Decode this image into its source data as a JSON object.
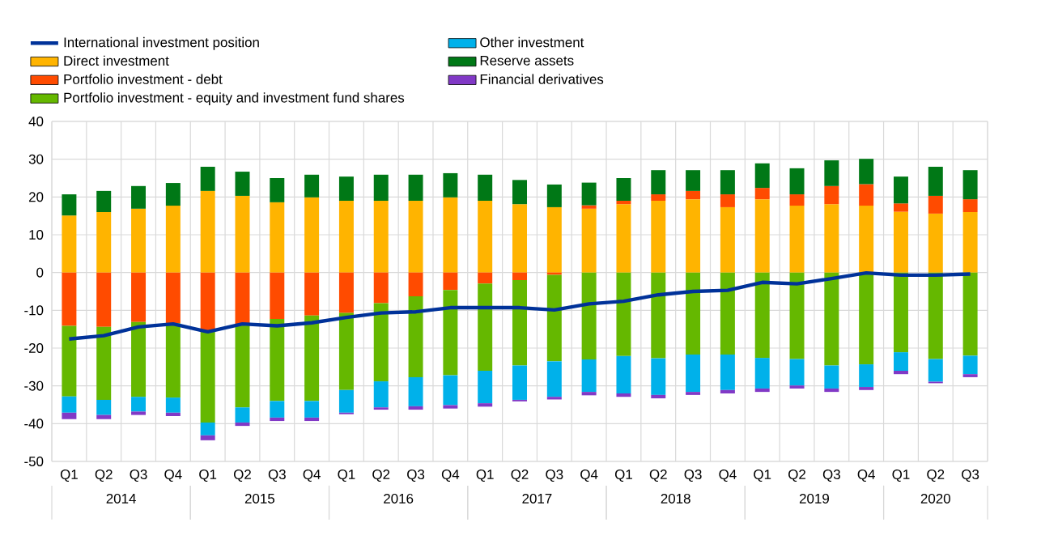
{
  "chart_data": {
    "type": "bar",
    "stacked": true,
    "categories": [
      "Q1",
      "Q2",
      "Q3",
      "Q4",
      "Q1",
      "Q2",
      "Q3",
      "Q4",
      "Q1",
      "Q2",
      "Q3",
      "Q4",
      "Q1",
      "Q2",
      "Q3",
      "Q4",
      "Q1",
      "Q2",
      "Q3",
      "Q4",
      "Q1",
      "Q2",
      "Q3",
      "Q4",
      "Q1",
      "Q2",
      "Q3"
    ],
    "annotations": [
      "2014",
      "2015",
      "2016",
      "2017",
      "2018",
      "2019",
      "2020"
    ],
    "ylim": [
      -50,
      40
    ],
    "yticks": [
      -50,
      -40,
      -30,
      -20,
      -10,
      0,
      10,
      20,
      30,
      40
    ],
    "grid": true,
    "legend": "top",
    "series": [
      {
        "name": "International investment position",
        "type": "line",
        "color": "#003299",
        "values": [
          -17.6,
          -16.7,
          -14.4,
          -13.6,
          -15.7,
          -13.6,
          -14.1,
          -13.3,
          -11.9,
          -10.7,
          -10.4,
          -9.3,
          -9.3,
          -9.3,
          -9.9,
          -8.3,
          -7.6,
          -5.9,
          -5.0,
          -4.7,
          -2.6,
          -3.0,
          -1.6,
          -0.1,
          -0.7,
          -0.7,
          -0.4
        ]
      },
      {
        "name": "Direct investment",
        "color": "#ffb400",
        "values": [
          15.1,
          16.0,
          16.9,
          17.7,
          21.6,
          20.3,
          18.6,
          19.9,
          19.0,
          19.0,
          19.0,
          19.9,
          19.0,
          18.1,
          17.3,
          16.9,
          18.1,
          19.0,
          19.4,
          17.3,
          19.4,
          17.7,
          18.1,
          17.7,
          16.1,
          15.6,
          16.0
        ]
      },
      {
        "name": "Portfolio investment - debt",
        "color": "#ff4b00",
        "values": [
          -14.1,
          -14.4,
          -13.1,
          -13.4,
          -15.4,
          -13.6,
          -12.3,
          -11.4,
          -10.7,
          -8.1,
          -6.3,
          -4.6,
          -2.9,
          -2.0,
          -0.6,
          0.9,
          0.9,
          1.7,
          2.2,
          3.4,
          3.0,
          3.0,
          4.8,
          5.7,
          2.2,
          4.7,
          3.4
        ]
      },
      {
        "name": "Portfolio investment - equity and investment fund shares",
        "color": "#65b800",
        "values": [
          -18.7,
          -19.3,
          -19.8,
          -19.7,
          -24.3,
          -22.1,
          -21.7,
          -22.6,
          -20.4,
          -20.7,
          -21.4,
          -22.6,
          -23.1,
          -22.6,
          -22.9,
          -23.0,
          -22.1,
          -22.7,
          -21.7,
          -21.7,
          -22.6,
          -22.9,
          -24.6,
          -24.3,
          -21.1,
          -22.9,
          -22.0
        ]
      },
      {
        "name": "Other investment",
        "color": "#00b1ea",
        "values": [
          -4.3,
          -4.0,
          -3.9,
          -4.0,
          -3.4,
          -4.0,
          -4.4,
          -4.4,
          -6.0,
          -6.9,
          -7.7,
          -7.9,
          -8.6,
          -9.1,
          -9.4,
          -8.6,
          -9.9,
          -9.7,
          -9.9,
          -9.4,
          -8.1,
          -7.0,
          -6.1,
          -6.0,
          -4.9,
          -6.0,
          -4.9
        ]
      },
      {
        "name": "Reserve assets",
        "color": "#007816",
        "values": [
          5.6,
          5.6,
          6.0,
          6.0,
          6.4,
          6.4,
          6.4,
          6.0,
          6.4,
          6.9,
          6.9,
          6.4,
          6.9,
          6.4,
          6.0,
          6.0,
          6.0,
          6.4,
          5.5,
          6.4,
          6.5,
          6.9,
          6.8,
          6.7,
          7.1,
          7.7,
          7.7
        ]
      },
      {
        "name": "Financial derivatives",
        "color": "#8139c6",
        "values": [
          -1.7,
          -1.1,
          -0.9,
          -0.9,
          -1.3,
          -0.9,
          -0.9,
          -0.9,
          -0.4,
          -0.6,
          -0.9,
          -0.9,
          -0.9,
          -0.4,
          -0.7,
          -0.9,
          -0.9,
          -0.9,
          -0.8,
          -0.9,
          -0.9,
          -0.8,
          -0.9,
          -0.8,
          -0.9,
          -0.4,
          -0.8
        ]
      }
    ]
  }
}
